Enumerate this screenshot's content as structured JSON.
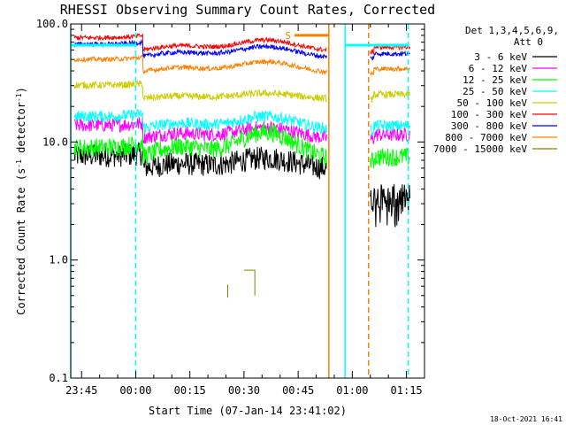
{
  "chart_data": {
    "type": "line",
    "title": "RHESSI Observing Summary Count Rates, Corrected",
    "xlabel": "Start Time (07-Jan-14 23:41:02)",
    "ylabel_parts": {
      "base": "Corrected Count Rate (s",
      "sup1": "-1",
      "mid": " detector",
      "sup2": "-1",
      "end": ")"
    },
    "y_scale": "log",
    "ylim": [
      0.1,
      100
    ],
    "y_ticks": [
      {
        "value": 0.1,
        "label": "0.1"
      },
      {
        "value": 1,
        "label": "1.0"
      },
      {
        "value": 10,
        "label": "10.0"
      },
      {
        "value": 100,
        "label": "100.0"
      }
    ],
    "x_range_minutes": [
      -18,
      80
    ],
    "x_ticks": [
      {
        "value": -15,
        "label": "23:45"
      },
      {
        "value": 0,
        "label": "00:00"
      },
      {
        "value": 15,
        "label": "00:15"
      },
      {
        "value": 30,
        "label": "00:30"
      },
      {
        "value": 45,
        "label": "00:45"
      },
      {
        "value": 60,
        "label": "01:00"
      },
      {
        "value": 75,
        "label": "01:15"
      }
    ],
    "legend_header": [
      "Det 1,3,4,5,6,9,",
      "Att 0"
    ],
    "legend_position": "right",
    "series": [
      {
        "name": "3 - 6 keV",
        "color": "#000000"
      },
      {
        "name": "6 - 12 keV",
        "color": "#ff00ff"
      },
      {
        "name": "12 - 25 keV",
        "color": "#00ff00"
      },
      {
        "name": "25 - 50 keV",
        "color": "#00ffff"
      },
      {
        "name": "50 - 100 keV",
        "color": "#cccc00"
      },
      {
        "name": "100 - 300 keV",
        "color": "#ff0000"
      },
      {
        "name": "300 - 800 keV",
        "color": "#0000ff"
      },
      {
        "name": "800 - 7000 keV",
        "color": "#ff8000"
      },
      {
        "name": "7000 - 15000 keV",
        "color": "#808000"
      }
    ],
    "flags": [
      {
        "name": "saa",
        "color": "#ff8000",
        "label": "S",
        "x_start": 44,
        "x_end": 53.5,
        "y": 80
      },
      {
        "name": "night",
        "color": "#00ffff",
        "x_start": -18,
        "x_end": 0,
        "y": 66
      },
      {
        "name": "night",
        "color": "#00ffff",
        "x_start": 58,
        "x_end": 75.5,
        "y": 66
      }
    ],
    "vertical_lines": [
      {
        "x": -18,
        "color": "#00ffff",
        "style": "solid"
      },
      {
        "x": 0,
        "color": "#00ffff",
        "style": "dashed"
      },
      {
        "x": 53.5,
        "color": "#ff8000",
        "style": "solid"
      },
      {
        "x": 58,
        "color": "#00ffff",
        "style": "solid"
      },
      {
        "x": 64.5,
        "color": "#ff8000",
        "style": "dashed"
      },
      {
        "x": 75.5,
        "color": "#00ffff",
        "style": "dashed"
      }
    ]
  },
  "footer": {
    "timestamp": "18-Oct-2021 16:41"
  }
}
